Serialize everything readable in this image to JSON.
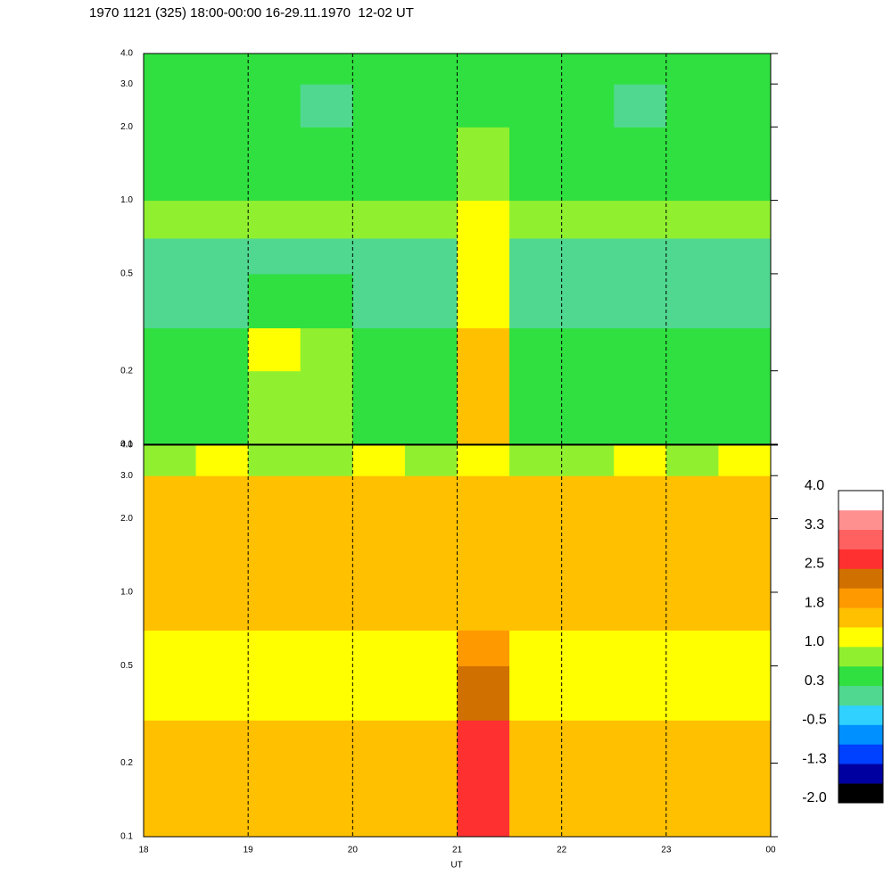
{
  "chart_data": {
    "type": "heatmap",
    "title": "1970 1121 (325) 18:00-00:00 16-29.11.1970  12-02 UT",
    "xlabel": "UT",
    "xlim": [
      18,
      24
    ],
    "xticks": [
      18,
      19,
      20,
      21,
      22,
      23,
      {
        "value": 24,
        "label": "00"
      }
    ],
    "ylim": [
      0.1,
      4.0
    ],
    "yticks": [
      0.1,
      0.2,
      0.5,
      {
        "value": 1.0,
        "label": "1.0"
      },
      {
        "value": 2.0,
        "label": "2.0"
      },
      {
        "value": 3.0,
        "label": "3.0"
      },
      {
        "value": 4.0,
        "label": "4.0"
      }
    ],
    "log_y": true,
    "dashed_gridlines": true,
    "time_bins": [
      18,
      18.5,
      19,
      19.5,
      20,
      20.5,
      21,
      21.5,
      22,
      22.5,
      23,
      23.5,
      24
    ],
    "freq_bins": [
      0.1,
      0.2,
      0.3,
      0.5,
      0.7,
      1.0,
      2.0,
      3.0,
      4.0
    ],
    "panels": [
      {
        "values": [
          [
            0.5,
            0.4,
            0.9,
            0.7,
            0.5,
            0.5,
            1.4,
            0.5,
            0.4,
            0.4,
            0.5,
            0.6
          ],
          [
            0.5,
            0.5,
            1.0,
            0.9,
            0.6,
            0.5,
            1.5,
            0.6,
            0.5,
            0.5,
            0.5,
            0.6
          ],
          [
            -0.1,
            0.0,
            0.6,
            0.4,
            0.2,
            0.1,
            1.3,
            0.1,
            0.0,
            0.1,
            0.0,
            0.2
          ],
          [
            0.1,
            0.2,
            0.2,
            0.1,
            0.2,
            0.1,
            1.2,
            0.2,
            0.1,
            0.2,
            0.1,
            0.2
          ],
          [
            0.8,
            0.8,
            0.7,
            0.8,
            0.8,
            0.7,
            1.0,
            0.8,
            0.7,
            0.8,
            0.8,
            0.7
          ],
          [
            0.5,
            0.6,
            0.5,
            0.4,
            0.5,
            0.6,
            0.7,
            0.5,
            0.5,
            0.5,
            0.6,
            0.5
          ],
          [
            0.3,
            0.4,
            0.3,
            0.2,
            0.3,
            0.3,
            0.4,
            0.3,
            0.3,
            0.2,
            0.3,
            0.3
          ],
          [
            0.4,
            0.3,
            0.4,
            0.3,
            0.4,
            0.4,
            0.4,
            0.3,
            0.4,
            0.3,
            0.4,
            0.4
          ]
        ]
      },
      {
        "values": [
          [
            1.5,
            1.6,
            1.6,
            1.7,
            1.5,
            1.6,
            2.6,
            1.6,
            1.5,
            1.4,
            1.6,
            1.6
          ],
          [
            1.5,
            1.6,
            1.6,
            1.6,
            1.5,
            1.5,
            2.6,
            1.6,
            1.5,
            1.5,
            1.5,
            1.6
          ],
          [
            1.2,
            1.1,
            1.2,
            1.2,
            1.1,
            1.2,
            2.4,
            1.2,
            1.1,
            1.2,
            1.1,
            1.2
          ],
          [
            1.1,
            1.2,
            1.1,
            1.2,
            1.2,
            1.1,
            1.8,
            1.1,
            1.2,
            1.1,
            1.2,
            1.1
          ],
          [
            1.4,
            1.6,
            1.5,
            1.6,
            1.5,
            1.6,
            1.6,
            1.6,
            1.5,
            1.6,
            1.5,
            1.4
          ],
          [
            1.4,
            1.5,
            1.4,
            1.4,
            1.5,
            1.4,
            1.5,
            1.4,
            1.5,
            1.4,
            1.4,
            1.5
          ],
          [
            1.6,
            1.6,
            1.5,
            1.6,
            1.6,
            1.5,
            1.6,
            1.5,
            1.6,
            1.5,
            1.6,
            1.5
          ],
          [
            0.9,
            1.0,
            0.9,
            0.9,
            1.0,
            0.9,
            1.0,
            0.9,
            0.9,
            1.0,
            0.9,
            1.0
          ]
        ]
      }
    ],
    "colorbar": {
      "range": [
        -2.0,
        4.0
      ],
      "colors": [
        "#000000",
        "#0000a0",
        "#0040ff",
        "#0090ff",
        "#30d0ff",
        "#50d890",
        "#30e040",
        "#90f030",
        "#ffff00",
        "#ffc000",
        "#ff9900",
        "#d07000",
        "#ff3030",
        "#ff6060",
        "#ff9090",
        "#ffffff"
      ],
      "ticks": [
        {
          "value": 4.0,
          "label": "4.0"
        },
        {
          "value": 3.25,
          "label": "3.3"
        },
        {
          "value": 2.5,
          "label": "2.5"
        },
        {
          "value": 1.75,
          "label": "1.8"
        },
        {
          "value": 1.0,
          "label": "1.0"
        },
        {
          "value": 0.25,
          "label": "0.3"
        },
        {
          "value": -0.5,
          "label": "-0.5"
        },
        {
          "value": -1.25,
          "label": "-1.3"
        },
        {
          "value": -2.0,
          "label": "-2.0"
        }
      ]
    }
  }
}
